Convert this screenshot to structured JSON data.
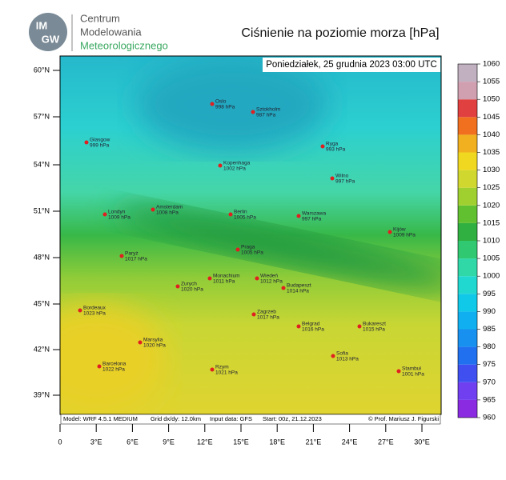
{
  "header": {
    "logo": [
      "IM",
      "GW"
    ],
    "institute": [
      "Centrum",
      "Modelowania",
      "Meteorologicznego"
    ],
    "title": "Ciśnienie na poziomie morza [hPa]"
  },
  "map": {
    "timestamp": "Poniedziałek, 25 grudnia 2023 03:00 UTC",
    "lat_labels": [
      "60°N",
      "57°N",
      "54°N",
      "51°N",
      "48°N",
      "45°N",
      "42°N",
      "39°N"
    ],
    "lon_labels": [
      "0",
      "3°E",
      "6°E",
      "9°E",
      "12°E",
      "15°E",
      "18°E",
      "21°E",
      "24°E",
      "27°E",
      "30°E"
    ],
    "cities": [
      {
        "name": "Oslo",
        "pressure": "998 hPa"
      },
      {
        "name": "Sztokholm",
        "pressure": "987 hPa"
      },
      {
        "name": "Ryga",
        "pressure": "993 hPa"
      },
      {
        "name": "Glasgow",
        "pressure": "999 hPa"
      },
      {
        "name": "Kopenhaga",
        "pressure": "1002 hPa"
      },
      {
        "name": "Wilno",
        "pressure": "997 hPa"
      },
      {
        "name": "Londyn",
        "pressure": "1009 hPa"
      },
      {
        "name": "Amsterdam",
        "pressure": "1008 hPa"
      },
      {
        "name": "Berlin",
        "pressure": "1005 hPa"
      },
      {
        "name": "Warszawa",
        "pressure": "997 hPa"
      },
      {
        "name": "Kijów",
        "pressure": "1009 hPa"
      },
      {
        "name": "Paryż",
        "pressure": "1017 hPa"
      },
      {
        "name": "Praga",
        "pressure": "1005 hPa"
      },
      {
        "name": "Monachium",
        "pressure": "1011 hPa"
      },
      {
        "name": "Wiedeń",
        "pressure": "1012 hPa"
      },
      {
        "name": "Budapeszt",
        "pressure": "1014 hPa"
      },
      {
        "name": "Zurych",
        "pressure": "1020 hPa"
      },
      {
        "name": "Bordeaux",
        "pressure": "1023 hPa"
      },
      {
        "name": "Zagrzeb",
        "pressure": "1017 hPa"
      },
      {
        "name": "Belgrad",
        "pressure": "1016 hPa"
      },
      {
        "name": "Bukareszt",
        "pressure": "1015 hPa"
      },
      {
        "name": "Marsylia",
        "pressure": "1020 hPa"
      },
      {
        "name": "Sofia",
        "pressure": "1013 hPa"
      },
      {
        "name": "Barcelona",
        "pressure": "1022 hPa"
      },
      {
        "name": "Rzym",
        "pressure": "1021 hPa"
      },
      {
        "name": "Stambuł",
        "pressure": "1001 hPa"
      }
    ],
    "footer": {
      "model": "Model: WRF 4.5.1 MEDIUM",
      "grid": "Grid dx/dy: 12.0km",
      "input": "Input data: GFS",
      "start": "Start: 00z, 21.12.2023",
      "credit": "© Prof. Mariusz J. Figurski"
    }
  },
  "colorbar": {
    "ticks": [
      960,
      965,
      970,
      975,
      980,
      985,
      990,
      995,
      1000,
      1005,
      1010,
      1015,
      1020,
      1025,
      1030,
      1035,
      1040,
      1045,
      1050,
      1055,
      1060
    ],
    "colors": [
      "#8a2be2",
      "#7040f0",
      "#4050f0",
      "#2070f0",
      "#1890f0",
      "#10b0f0",
      "#10c8e8",
      "#20d8d0",
      "#30d8a8",
      "#30c870",
      "#30b040",
      "#60c030",
      "#a0d030",
      "#d0d830",
      "#f0d820",
      "#f0b020",
      "#f07020",
      "#e04040",
      "#d0a0b0",
      "#c0b0c0"
    ]
  }
}
